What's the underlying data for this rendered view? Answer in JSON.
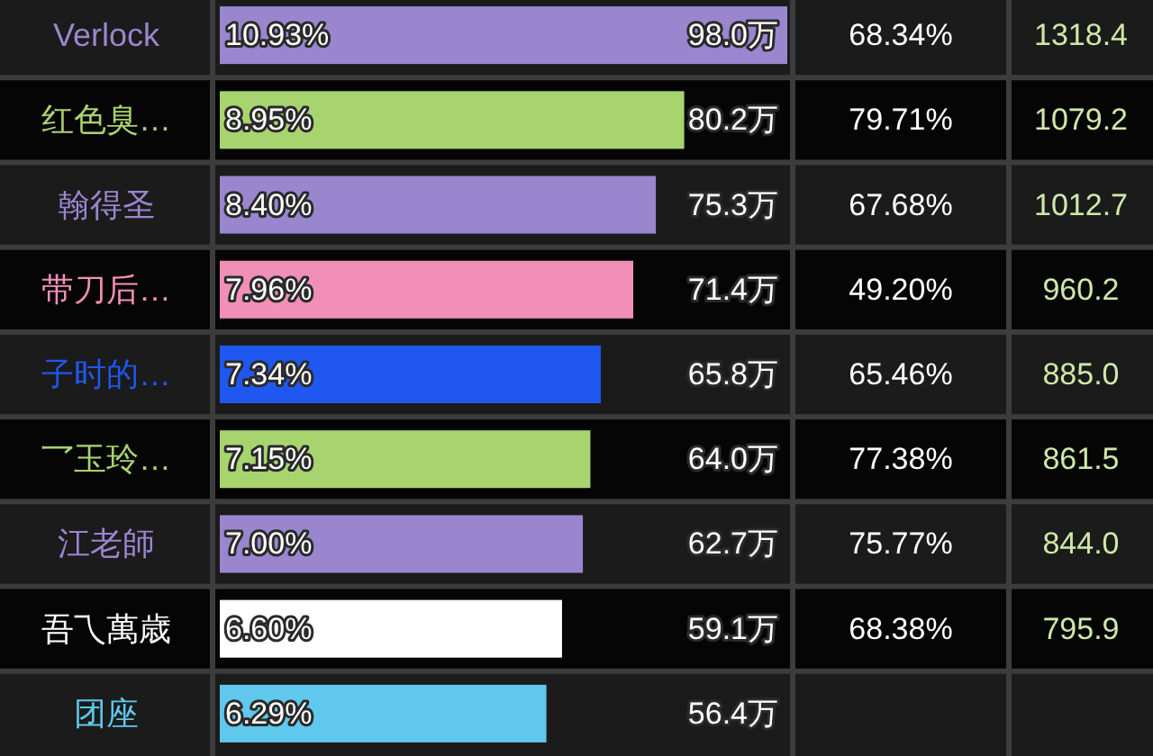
{
  "chart_data": {
    "type": "bar",
    "orientation": "horizontal",
    "categories": [
      "Verlock",
      "红色臭…",
      "翰得圣",
      "带刀后…",
      "子时的…",
      "乛玉玲…",
      "江老師",
      "吾乁萬歳",
      "团座"
    ],
    "values": [
      98.0,
      80.2,
      75.3,
      71.4,
      65.8,
      64.0,
      62.7,
      59.1,
      56.4
    ],
    "colors": [
      "#9a86cf",
      "#a8d46f",
      "#9a86cf",
      "#f28fb8",
      "#1f57f0",
      "#a8d46f",
      "#9a86cf",
      "#ffffff",
      "#5fc8ec"
    ],
    "value_labels": [
      "98.0万",
      "80.2万",
      "75.3万",
      "71.4万",
      "65.8万",
      "64.0万",
      "62.7万",
      "59.1万",
      "56.4万"
    ],
    "annotations": [
      "10.93%",
      "68.34%",
      "1318.4",
      "8.95%",
      "79.71%",
      "1079.2",
      "8.40%",
      "67.68%",
      "1012.7",
      "7.96%",
      "49.20%",
      "960.2",
      "7.34%",
      "65.46%",
      "885.0",
      "7.15%",
      "77.38%",
      "861.5",
      "7.00%",
      "75.77%",
      "844.0",
      "6.60%",
      "68.38%",
      "795.9",
      "6.29%"
    ]
  }
}
